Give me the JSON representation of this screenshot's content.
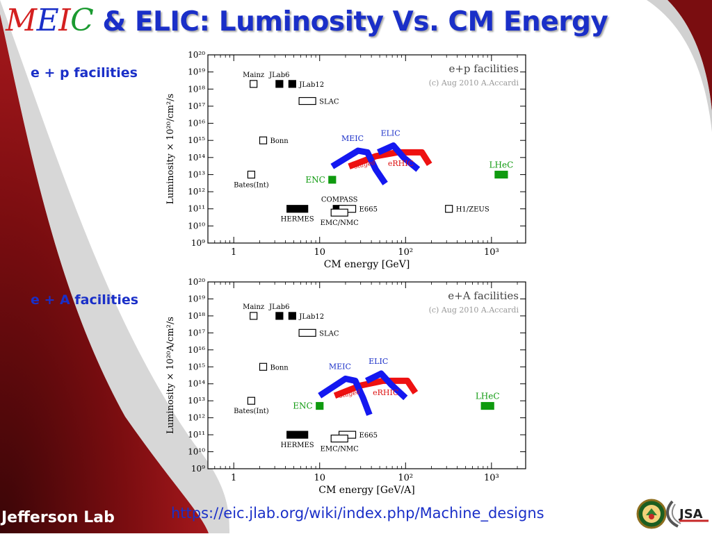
{
  "slide": {
    "title_logo": {
      "m": "M",
      "e": "E",
      "i": "I",
      "c": "C"
    },
    "title_text": "& ELIC: Luminosity Vs. CM Energy",
    "label_ep": "e + p facilities",
    "label_eA": "e + A facilities",
    "footer_url": "https://eic.jlab.org/wiki/index.php/Machine_designs",
    "org_logo_text": "Jefferson Lab",
    "jsa_logo_text": "JSA",
    "colors": {
      "title": "#1a2fc8",
      "background_swoosh": "#7a0d10"
    }
  },
  "chart_data": [
    {
      "type": "scatter",
      "title": "e+p facilities",
      "subtitle": "(c) Aug 2010 A.Accardi",
      "xlabel": "CM energy [GeV]",
      "ylabel": "Luminosity × 10²⁰/cm²/s",
      "xscale": "log",
      "yscale": "log",
      "xlim": [
        0.5,
        2500
      ],
      "ylim": [
        1000000000.0,
        1e+20
      ],
      "x_tick_labels": [
        "1",
        "10",
        "10²",
        "10³"
      ],
      "y_tick_labels": [
        "10⁹",
        "10¹⁰",
        "10¹¹",
        "10¹²",
        "10¹³",
        "10¹⁴",
        "10¹⁵",
        "10¹⁶",
        "10¹⁷",
        "10¹⁸",
        "10¹⁹",
        "10²⁰"
      ],
      "facilities": [
        {
          "name": "Mainz",
          "x": 1.7,
          "y": 2e+18,
          "style": "open",
          "label_pos": "above"
        },
        {
          "name": "JLab6",
          "x": 3.4,
          "y": 2e+18,
          "style": "filled",
          "label_pos": "above"
        },
        {
          "name": "JLab12",
          "x": 4.8,
          "y": 2e+18,
          "style": "filled",
          "label_pos": "right"
        },
        {
          "name": "SLAC",
          "x": 7.2,
          "y": 2e+17,
          "style": "open",
          "label_pos": "right"
        },
        {
          "name": "Bonn",
          "x": 2.2,
          "y": 1000000000000000.0,
          "style": "open",
          "label_pos": "right"
        },
        {
          "name": "Bates(Int)",
          "x": 1.6,
          "y": 10000000000000.0,
          "style": "open",
          "label_pos": "below"
        },
        {
          "name": "ENC",
          "x": 14,
          "y": 5000000000000.0,
          "style": "green",
          "label_pos": "left"
        },
        {
          "name": "LHeC",
          "x": 1300,
          "y": 10000000000000.0,
          "style": "green",
          "label_pos": "above"
        },
        {
          "name": "HERMES",
          "x": 5.5,
          "y": 100000000000.0,
          "style": "filled",
          "label_pos": "below"
        },
        {
          "name": "COMPASS",
          "x": 17,
          "y": 100000000000.0,
          "style": "filled",
          "label_pos": "above"
        },
        {
          "name": "E665",
          "x": 21,
          "y": 100000000000.0,
          "style": "open",
          "label_pos": "right"
        },
        {
          "name": "EMC/NMC",
          "x": 17,
          "y": 60000000000.0,
          "style": "open",
          "label_pos": "below"
        },
        {
          "name": "H1/ZEUS",
          "x": 320,
          "y": 100000000000.0,
          "style": "open",
          "label_pos": "right"
        }
      ],
      "curves": [
        {
          "name": "MEIC",
          "color": "blue",
          "points": [
            [
              14,
              30000000000000.0
            ],
            [
              28,
              250000000000000.0
            ],
            [
              36,
              200000000000000.0
            ],
            [
              45,
              20000000000000.0
            ],
            [
              58,
              3000000000000.0
            ]
          ]
        },
        {
          "name": "ELIC",
          "color": "blue",
          "points": [
            [
              48,
              200000000000000.0
            ],
            [
              72,
              500000000000000.0
            ],
            [
              95,
              100000000000000.0
            ],
            [
              140,
              20000000000000.0
            ]
          ]
        },
        {
          "name": "eRHIC",
          "color": "red",
          "points": [
            [
              22,
              30000000000000.0
            ],
            [
              45,
              120000000000000.0
            ],
            [
              80,
              200000000000000.0
            ],
            [
              155,
              200000000000000.0
            ],
            [
              190,
              40000000000000.0
            ]
          ]
        }
      ],
      "annotations": [
        "staged"
      ]
    },
    {
      "type": "scatter",
      "title": "e+A facilities",
      "subtitle": "(c) Aug 2010 A.Accardi",
      "xlabel": "CM energy [GeV/A]",
      "ylabel": "Luminosity × 10²⁰A/cm²/s",
      "xscale": "log",
      "yscale": "log",
      "xlim": [
        0.5,
        2500
      ],
      "ylim": [
        1000000000.0,
        1e+20
      ],
      "x_tick_labels": [
        "1",
        "10",
        "10²",
        "10³"
      ],
      "y_tick_labels": [
        "10⁹",
        "10¹⁰",
        "10¹¹",
        "10¹²",
        "10¹³",
        "10¹⁴",
        "10¹⁵",
        "10¹⁶",
        "10¹⁷",
        "10¹⁸",
        "10¹⁹",
        "10²⁰"
      ],
      "facilities": [
        {
          "name": "Mainz",
          "x": 1.7,
          "y": 1e+18,
          "style": "open",
          "label_pos": "above"
        },
        {
          "name": "JLab6",
          "x": 3.4,
          "y": 1e+18,
          "style": "filled",
          "label_pos": "above"
        },
        {
          "name": "JLab12",
          "x": 4.8,
          "y": 1e+18,
          "style": "filled",
          "label_pos": "right"
        },
        {
          "name": "SLAC",
          "x": 7.2,
          "y": 1e+17,
          "style": "open",
          "label_pos": "right"
        },
        {
          "name": "Bonn",
          "x": 2.2,
          "y": 1000000000000000.0,
          "style": "open",
          "label_pos": "right"
        },
        {
          "name": "Bates(Int)",
          "x": 1.6,
          "y": 10000000000000.0,
          "style": "open",
          "label_pos": "below"
        },
        {
          "name": "ENC",
          "x": 10,
          "y": 5000000000000.0,
          "style": "green",
          "label_pos": "left"
        },
        {
          "name": "LHeC",
          "x": 900,
          "y": 5000000000000.0,
          "style": "green",
          "label_pos": "above"
        },
        {
          "name": "HERMES",
          "x": 5.5,
          "y": 100000000000.0,
          "style": "filled",
          "label_pos": "below"
        },
        {
          "name": "E665",
          "x": 21,
          "y": 100000000000.0,
          "style": "open",
          "label_pos": "right"
        },
        {
          "name": "EMC/NMC",
          "x": 17,
          "y": 60000000000.0,
          "style": "open",
          "label_pos": "below"
        }
      ],
      "curves": [
        {
          "name": "MEIC",
          "color": "blue",
          "points": [
            [
              10,
              20000000000000.0
            ],
            [
              20,
              200000000000000.0
            ],
            [
              26,
              150000000000000.0
            ],
            [
              32,
              15000000000000.0
            ],
            [
              38,
              1500000000000.0
            ]
          ]
        },
        {
          "name": "ELIC",
          "color": "blue",
          "points": [
            [
              35,
              150000000000000.0
            ],
            [
              52,
              400000000000000.0
            ],
            [
              68,
              90000000000000.0
            ],
            [
              100,
              15000000000000.0
            ]
          ]
        },
        {
          "name": "eRHIC",
          "color": "red",
          "points": [
            [
              15,
              20000000000000.0
            ],
            [
              30,
              80000000000000.0
            ],
            [
              55,
              150000000000000.0
            ],
            [
              105,
              150000000000000.0
            ],
            [
              130,
              30000000000000.0
            ]
          ]
        }
      ],
      "annotations": [
        "staged"
      ]
    }
  ]
}
